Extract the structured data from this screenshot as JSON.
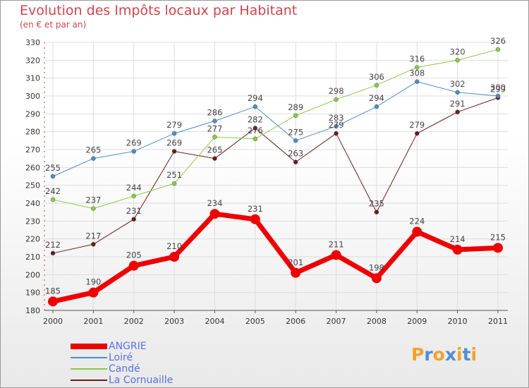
{
  "title": "Evolution des Impôts locaux par Habitant",
  "subtitle": "(en € et par an)",
  "logo_text": "Proxiti",
  "logo_letters": [
    "P",
    "r",
    "o",
    "x",
    "i",
    "t",
    "i"
  ],
  "logo_colors": [
    "#f4a12a",
    "#4d8fd4",
    "#f4a12a",
    "#4d8fd4",
    "#f4a12a",
    "#4d8fd4",
    "#f4a12a"
  ],
  "chart_data": {
    "type": "line",
    "title": "Evolution des Impôts locaux par Habitant",
    "subtitle": "(en € et par an)",
    "xlabel": "",
    "ylabel": "",
    "x": [
      "2000",
      "2001",
      "2002",
      "2003",
      "2004",
      "2005",
      "2006",
      "2007",
      "2008",
      "2009",
      "2010",
      "2011"
    ],
    "ylim": [
      180,
      330
    ],
    "yticks": [
      180,
      190,
      200,
      210,
      220,
      230,
      240,
      250,
      260,
      270,
      280,
      290,
      300,
      310,
      320,
      330
    ],
    "grid": true,
    "legend_position": "bottom-left",
    "series": [
      {
        "name": "ANGRIE",
        "color": "#ee0000",
        "values": [
          185,
          190,
          205,
          210,
          234,
          231,
          201,
          211,
          198,
          224,
          214,
          215
        ],
        "labels": [
          "185",
          "190",
          "205",
          "210",
          "234",
          "231",
          "201",
          "211",
          "198",
          "224",
          "214",
          "215"
        ]
      },
      {
        "name": "Loiré",
        "color": "#4b8ec9",
        "values": [
          255,
          265,
          269,
          279,
          286,
          294,
          275,
          283,
          294,
          308,
          302,
          300
        ],
        "labels": [
          "255",
          "265",
          "269",
          "279",
          "286",
          "294",
          "275",
          "283",
          "294",
          "308",
          "302",
          "300"
        ]
      },
      {
        "name": "Candé",
        "color": "#88cc44",
        "values": [
          242,
          237,
          244,
          251,
          277,
          276,
          289,
          298,
          306,
          316,
          320,
          326
        ],
        "labels": [
          "242",
          "237",
          "244",
          "251",
          "277",
          "276",
          "289",
          "298",
          "306",
          "316",
          "320",
          "326"
        ]
      },
      {
        "name": "La Cornuaille",
        "color": "#6b1a1a",
        "values": [
          212,
          217,
          231,
          269,
          265,
          282,
          263,
          279,
          235,
          279,
          291,
          299
        ],
        "labels": [
          "212",
          "217",
          "231",
          "269",
          "265",
          "282",
          "263",
          "279",
          "235",
          "279",
          "291",
          "299"
        ]
      }
    ]
  }
}
